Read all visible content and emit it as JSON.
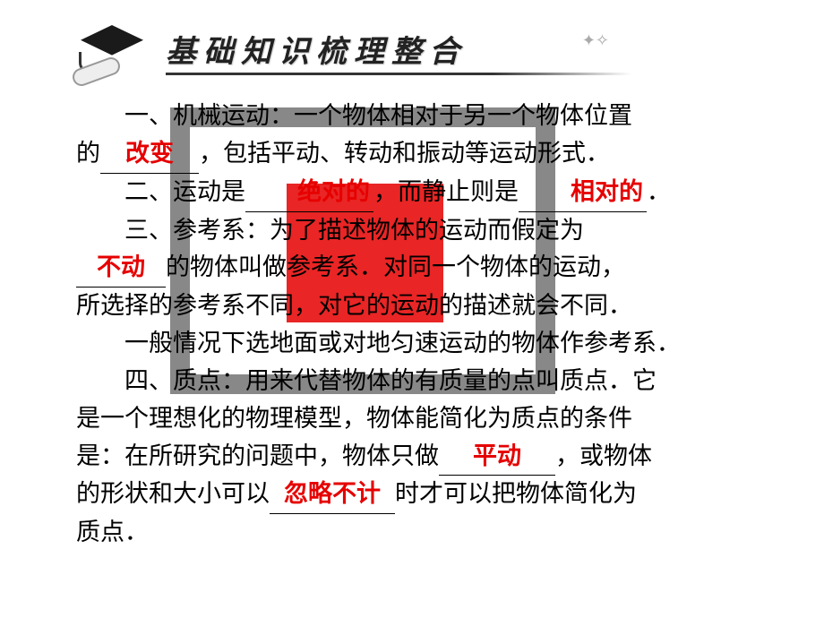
{
  "header": {
    "title": "基础知识梳理整合"
  },
  "watermark": {
    "box_color": "rgba(0,0,0,0.55)",
    "inner_color": "#e60000"
  },
  "fills": {
    "change": "改变",
    "absolute": "绝对的",
    "relative": "相对的",
    "stationary": "不动",
    "translation": "平动",
    "negligible": "忽略不计"
  },
  "text": {
    "p1_a": "一、机械运动：一个物体相对于另一个物体位置",
    "p1_b": "的",
    "p1_c": "，包括平动、转动和振动等运动形式．",
    "p2_a": "二、运动是",
    "p2_b": "，而静止则是",
    "p2_c": "．",
    "p3_a": "三、参考系：为了描述物体的运动而假定为",
    "p3_b": "的物体叫做参考系．对同一个物体的运动，",
    "p3_c": "所选择的参考系不同，对它的运动的描述就会不同．",
    "p4": "一般情况下选地面或对地匀速运动的物体作参考系．",
    "p5_a": "四、质点：用来代替物体的有质量的点叫质点．它",
    "p5_b": "是一个理想化的物理模型，物体能简化为质点的条件",
    "p5_c": "是：在所研究的问题中，物体只做",
    "p5_d": "，或物体",
    "p5_e": "的形状和大小可以",
    "p5_f": "时才可以把物体简化为",
    "p5_g": "质点．"
  },
  "style": {
    "body_font_size": 27,
    "title_font_size": 34,
    "fill_color": "#e60000",
    "text_color": "#000000",
    "background": "#ffffff"
  }
}
